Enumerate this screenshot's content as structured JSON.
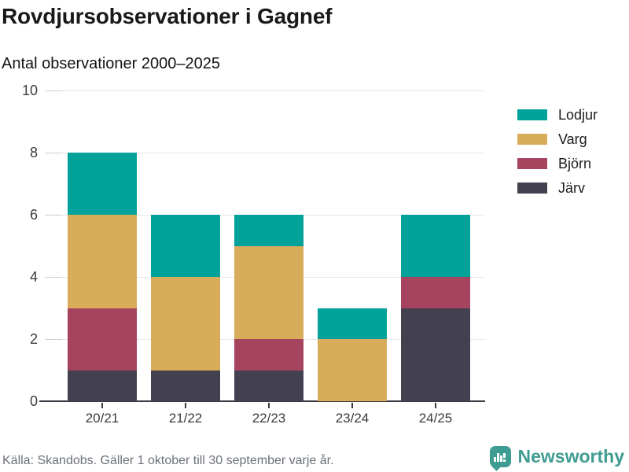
{
  "header": {
    "title": "Rovdjursobservationer i Gagnef",
    "subtitle": "Antal observationer 2000–2025"
  },
  "chart_data": {
    "type": "bar",
    "stacked": true,
    "title": "Rovdjursobservationer i Gagnef",
    "subtitle": "Antal observationer 2000–2025",
    "categories": [
      "20/21",
      "21/22",
      "22/23",
      "23/24",
      "24/25"
    ],
    "series": [
      {
        "name": "Lodjur",
        "color": "#00a29a",
        "values": [
          2,
          2,
          1,
          1,
          2
        ]
      },
      {
        "name": "Varg",
        "color": "#d9ac5c",
        "values": [
          3,
          3,
          3,
          2,
          0
        ]
      },
      {
        "name": "Björn",
        "color": "#a64460",
        "values": [
          2,
          0,
          1,
          0,
          1
        ]
      },
      {
        "name": "Järv",
        "color": "#434050",
        "values": [
          1,
          1,
          1,
          0,
          3
        ]
      }
    ],
    "stack_order_bottom_to_top": [
      "Järv",
      "Björn",
      "Varg",
      "Lodjur"
    ],
    "totals": [
      8,
      6,
      6,
      3,
      6
    ],
    "xlabel": "",
    "ylabel": "Antal observationer",
    "ylim": [
      0,
      10
    ],
    "yticks": [
      0,
      2,
      4,
      6,
      8,
      10
    ],
    "grid": "horizontal",
    "legend_position": "right"
  },
  "footer": {
    "source_note": "Källa: Skandobs. Gäller 1 oktober till 30 september varje år."
  },
  "branding": {
    "name": "Newsworthy",
    "icon": "bar-chart-speech-bubble-icon",
    "color": "#3f9c92"
  }
}
